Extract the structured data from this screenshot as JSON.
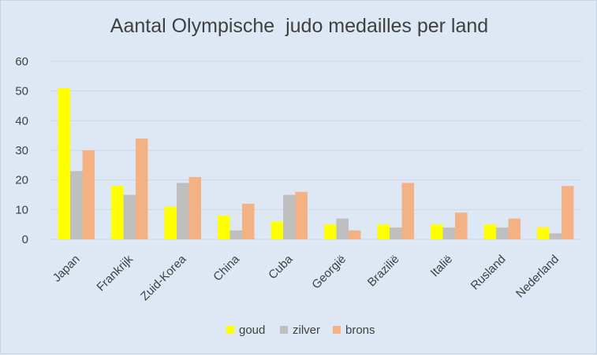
{
  "chart_data": {
    "type": "bar",
    "title": "Aantal Olympische  judo medailles per land",
    "categories": [
      "Japan",
      "Frankrijk",
      "Zuid-Korea",
      "China",
      "Cuba",
      "Georgië",
      "Brazilië",
      "Italië",
      "Rusland",
      "Nederland"
    ],
    "series": [
      {
        "name": "goud",
        "color": "#ffff00",
        "values": [
          51,
          18,
          11,
          8,
          6,
          5,
          5,
          5,
          5,
          4
        ]
      },
      {
        "name": "zilver",
        "color": "#bfbfbf",
        "values": [
          23,
          15,
          19,
          3,
          15,
          7,
          4,
          4,
          4,
          2
        ]
      },
      {
        "name": "brons",
        "color": "#f4b183",
        "values": [
          30,
          34,
          21,
          12,
          16,
          3,
          19,
          9,
          7,
          18
        ]
      }
    ],
    "yticks": [
      0,
      10,
      20,
      30,
      40,
      50,
      60
    ],
    "ylim": [
      0,
      60
    ],
    "grid": true,
    "legend": "bottom",
    "gridline_color": "#d0d8e0"
  }
}
